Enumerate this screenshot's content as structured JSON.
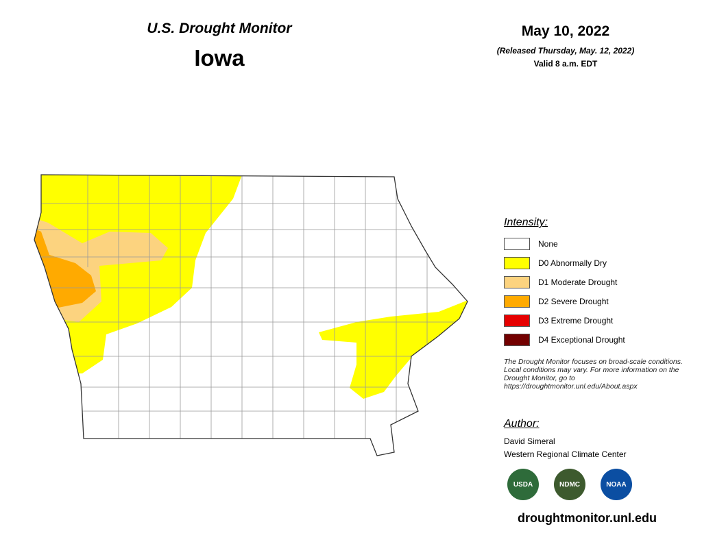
{
  "header": {
    "title": "U.S. Drought Monitor",
    "state": "Iowa"
  },
  "date": {
    "valid_date": "May 10, 2022",
    "released": "(Released Thursday, May. 12, 2022)",
    "valid_time": "Valid 8 a.m. EDT"
  },
  "legend": {
    "title": "Intensity:",
    "items": [
      {
        "label": "None",
        "color": "#ffffff"
      },
      {
        "label": "D0 Abnormally Dry",
        "color": "#ffff00"
      },
      {
        "label": "D1 Moderate Drought",
        "color": "#fcd37f"
      },
      {
        "label": "D2 Severe Drought",
        "color": "#ffaa00"
      },
      {
        "label": "D3 Extreme Drought",
        "color": "#e60000"
      },
      {
        "label": "D4 Exceptional Drought",
        "color": "#730000"
      }
    ]
  },
  "note": "The Drought Monitor focuses on broad-scale conditions. Local conditions may vary. For more information on the Drought Monitor, go to https://droughtmonitor.unl.edu/About.aspx",
  "author": {
    "title": "Author:",
    "name": "David Simeral",
    "org": "Western Regional Climate Center"
  },
  "logos": [
    "USDA",
    "NDMC",
    "NOAA"
  ],
  "url": "droughtmonitor.unl.edu"
}
